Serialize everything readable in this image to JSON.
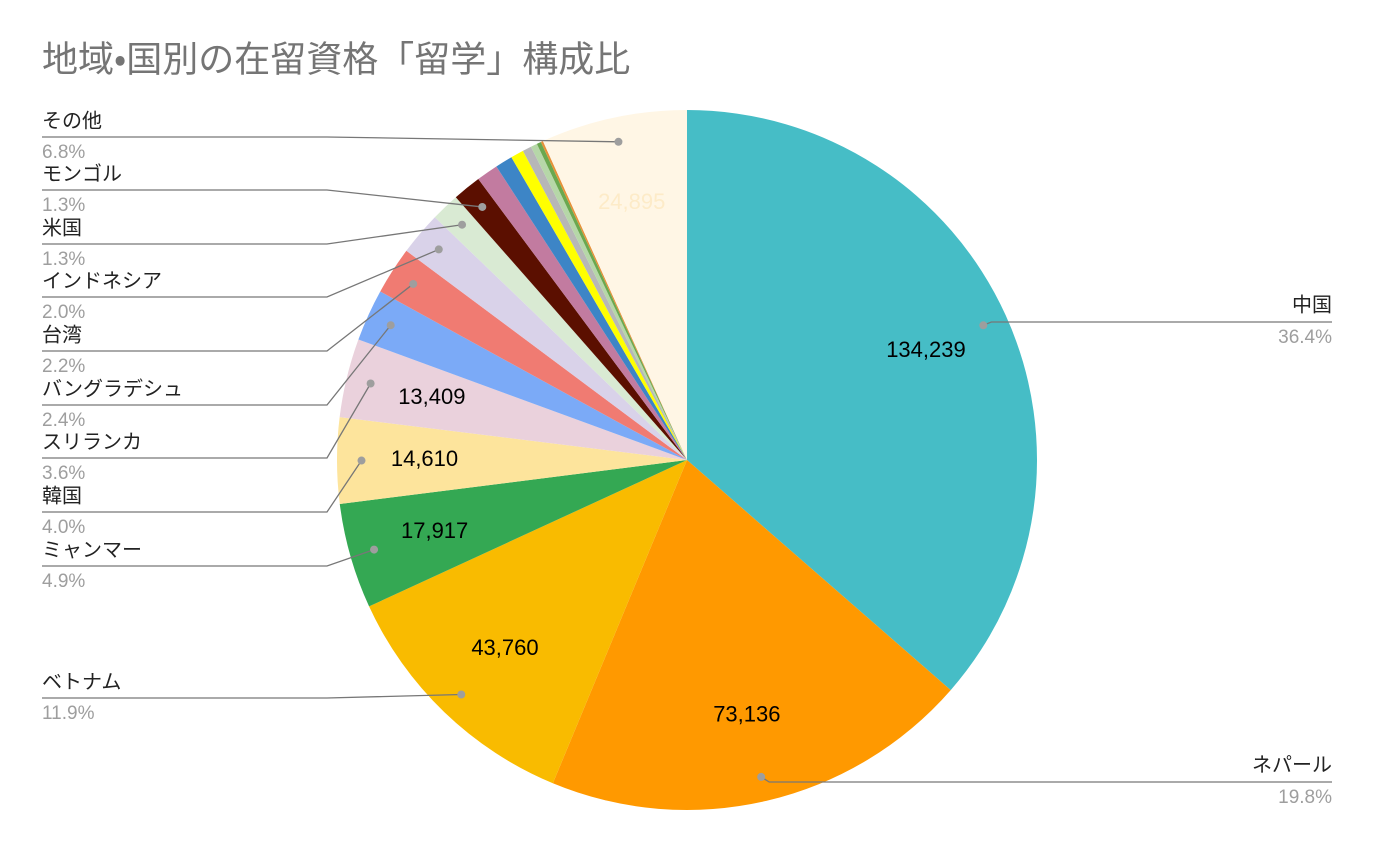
{
  "chart_data": {
    "type": "pie",
    "title": "地域・国別の在留資格「留学」構成比",
    "categories": [
      "中国",
      "ネパール",
      "ベトナム",
      "ミャンマー",
      "韓国",
      "スリランカ",
      "バングラデシュ",
      "台湾",
      "インドネシア",
      "米国",
      "モンゴル",
      null,
      null,
      null,
      null,
      null,
      null,
      null,
      "その他"
    ],
    "values": [
      134239,
      73136,
      43760,
      17917,
      14610,
      13409,
      8850,
      8110,
      7380,
      4860,
      4850,
      3690,
      2950,
      2210,
      1524,
      1100,
      740,
      370,
      24895
    ],
    "value_labels": [
      "134,239",
      "73,136",
      "43,760",
      "17,917",
      "14,610",
      "13,409",
      null,
      null,
      null,
      null,
      null,
      null,
      null,
      null,
      null,
      null,
      null,
      null,
      "24,895"
    ],
    "percent_labels": [
      "36.4%",
      "19.8%",
      "11.9%",
      "4.9%",
      "4.0%",
      "3.6%",
      "2.4%",
      "2.2%",
      "2.0%",
      "1.3%",
      "1.3%",
      null,
      null,
      null,
      null,
      null,
      null,
      null,
      "6.8%"
    ],
    "colors": [
      "#46bdc6",
      "#ff9900",
      "#f9bb00",
      "#34a853",
      "#fde49c",
      "#ead1dc",
      "#7baaf7",
      "#f07b72",
      "#d9d2e9",
      "#d9ead3",
      "#5b0f00",
      "#c27ba0",
      "#3d85c6",
      "#ffff00",
      "#b7b7b7",
      "#b6d7a8",
      "#6aa84f",
      "#e69138",
      "#fff6e5"
    ]
  }
}
